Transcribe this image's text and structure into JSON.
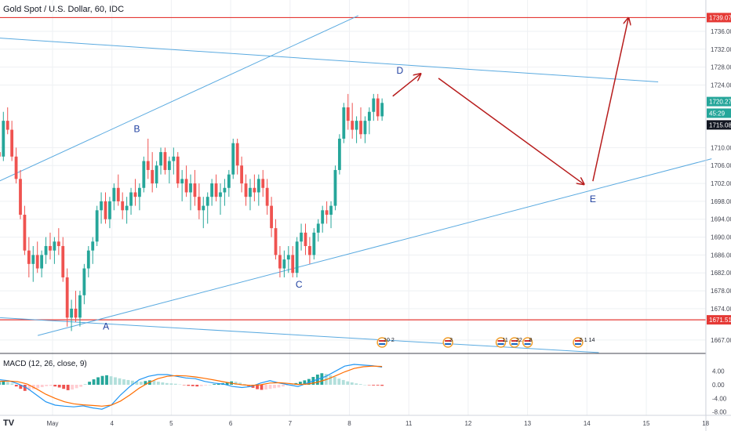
{
  "header": {
    "title": "Gold Spot / U.S. Dollar, 60, IDC"
  },
  "macd": {
    "title": "MACD (12, 26, close, 9)"
  },
  "brand": {
    "watermark": "TV"
  },
  "colors": {
    "up": "#26a69a",
    "down": "#ef5350",
    "channel": "#5aaae0",
    "level": "#e53935",
    "arrow": "#b71c1c",
    "macd_line": "#2196f3",
    "signal_line": "#ff6d00",
    "label": "#1e3fa0",
    "grid": "#eef0f3"
  },
  "chart_data": [
    {
      "type": "candlestick",
      "ylim": [
        1664,
        1743
      ],
      "y_ticks": [
        1667,
        1674,
        1678,
        1682,
        1686,
        1690,
        1694,
        1698,
        1702,
        1706,
        1710,
        1724,
        1728,
        1732,
        1736
      ],
      "x_ticks": [
        {
          "label": "May",
          "x": 0
        },
        {
          "label": "4",
          "x": 1
        },
        {
          "label": "5",
          "x": 2
        },
        {
          "label": "6",
          "x": 3
        },
        {
          "label": "7",
          "x": 4
        },
        {
          "label": "8",
          "x": 5
        },
        {
          "label": "11",
          "x": 6
        },
        {
          "label": "12",
          "x": 7
        },
        {
          "label": "13",
          "x": 8
        },
        {
          "label": "14",
          "x": 9
        },
        {
          "label": "15",
          "x": 10
        },
        {
          "label": "18",
          "x": 11
        }
      ],
      "price_tags": [
        {
          "label": "1739.07",
          "value": 1739.07,
          "color": "#e53935"
        },
        {
          "label": "1720.27",
          "value": 1720.3,
          "color": "#26a69a"
        },
        {
          "label": "45:29",
          "value": 1717.7,
          "color": "#26a69a"
        },
        {
          "label": "1715.08",
          "value": 1715.08,
          "color": "#131722"
        },
        {
          "label": "1671.51",
          "value": 1671.51,
          "color": "#e53935"
        }
      ],
      "horizontal_levels": [
        1739.07,
        1671.51
      ],
      "channel_lines": [
        {
          "x": [
            -0.9,
            5.15
          ],
          "y": [
            1702.5,
            1739.5
          ]
        },
        {
          "x": [
            -0.25,
            11.1
          ],
          "y": [
            1668,
            1707.5
          ]
        },
        {
          "x": [
            -0.9,
            10.2
          ],
          "y": [
            1734.5,
            1724.7
          ]
        },
        {
          "x": [
            -0.9,
            9.2
          ],
          "y": [
            1672,
            1664.2
          ]
        }
      ],
      "wave_labels": [
        {
          "text": "A",
          "x": 0.9,
          "y": 1669.3
        },
        {
          "text": "B",
          "x": 1.42,
          "y": 1713.5
        },
        {
          "text": "C",
          "x": 4.15,
          "y": 1678.7
        },
        {
          "text": "D",
          "x": 5.85,
          "y": 1726.5
        },
        {
          "text": "E",
          "x": 9.1,
          "y": 1697.8
        }
      ],
      "projection_arrows": [
        {
          "x": [
            5.73,
            6.2
          ],
          "y": [
            1721.5,
            1726.5
          ]
        },
        {
          "x": [
            6.5,
            8.95
          ],
          "y": [
            1725.5,
            1701.8
          ]
        },
        {
          "x": [
            9.1,
            9.7
          ],
          "y": [
            1702.5,
            1739
          ]
        }
      ],
      "events": [
        {
          "text": "10 2",
          "x": 5.55
        },
        {
          "text": "3",
          "x": 6.66
        },
        {
          "text": "11",
          "x": 7.55
        },
        {
          "text": "22",
          "x": 7.78
        },
        {
          "text": "8",
          "x": 8.0
        },
        {
          "text": "5 1 14",
          "x": 8.85
        }
      ],
      "candles": [
        [
          1709,
          1712,
          1705,
          1708
        ],
        [
          1708,
          1718,
          1707,
          1716
        ],
        [
          1716,
          1719,
          1713,
          1714
        ],
        [
          1714,
          1716,
          1707,
          1708
        ],
        [
          1708,
          1710,
          1702,
          1703
        ],
        [
          1703,
          1705,
          1694,
          1695
        ],
        [
          1695,
          1697,
          1686,
          1687
        ],
        [
          1687,
          1690,
          1681,
          1684
        ],
        [
          1684,
          1688,
          1680,
          1686
        ],
        [
          1686,
          1689,
          1682,
          1683
        ],
        [
          1683,
          1687,
          1681,
          1686
        ],
        [
          1686,
          1690,
          1684,
          1688
        ],
        [
          1688,
          1691,
          1685,
          1687
        ],
        [
          1687,
          1690,
          1684,
          1689
        ],
        [
          1689,
          1692,
          1686,
          1688
        ],
        [
          1688,
          1690,
          1680,
          1681
        ],
        [
          1681,
          1683,
          1670,
          1672
        ],
        [
          1672,
          1676,
          1669,
          1674
        ],
        [
          1674,
          1678,
          1671,
          1672
        ],
        [
          1672,
          1678,
          1670,
          1677
        ],
        [
          1677,
          1684,
          1675,
          1683
        ],
        [
          1683,
          1688,
          1681,
          1687
        ],
        [
          1687,
          1690,
          1684,
          1689
        ],
        [
          1689,
          1697,
          1688,
          1696
        ],
        [
          1696,
          1700,
          1693,
          1698
        ],
        [
          1698,
          1700,
          1693,
          1694
        ],
        [
          1694,
          1699,
          1692,
          1698
        ],
        [
          1698,
          1702,
          1696,
          1701
        ],
        [
          1701,
          1704,
          1697,
          1698
        ],
        [
          1698,
          1700,
          1694,
          1696
        ],
        [
          1696,
          1699,
          1693,
          1697
        ],
        [
          1697,
          1701,
          1695,
          1700
        ],
        [
          1700,
          1703,
          1697,
          1699
        ],
        [
          1699,
          1702,
          1696,
          1701
        ],
        [
          1701,
          1708,
          1700,
          1707
        ],
        [
          1707,
          1712,
          1703,
          1705
        ],
        [
          1705,
          1709,
          1700,
          1702
        ],
        [
          1702,
          1707,
          1701,
          1706
        ],
        [
          1706,
          1710,
          1704,
          1709
        ],
        [
          1709,
          1710,
          1704,
          1705
        ],
        [
          1705,
          1708,
          1702,
          1707
        ],
        [
          1707,
          1710,
          1704,
          1708
        ],
        [
          1708,
          1709,
          1701,
          1702
        ],
        [
          1702,
          1705,
          1698,
          1703
        ],
        [
          1703,
          1706,
          1699,
          1700
        ],
        [
          1700,
          1704,
          1696,
          1702
        ],
        [
          1702,
          1705,
          1697,
          1699
        ],
        [
          1699,
          1702,
          1694,
          1696
        ],
        [
          1696,
          1699,
          1692,
          1697
        ],
        [
          1697,
          1700,
          1693,
          1699
        ],
        [
          1699,
          1703,
          1697,
          1702
        ],
        [
          1702,
          1704,
          1698,
          1699
        ],
        [
          1699,
          1702,
          1695,
          1700
        ],
        [
          1700,
          1703,
          1697,
          1701
        ],
        [
          1701,
          1705,
          1699,
          1704
        ],
        [
          1704,
          1712,
          1703,
          1711
        ],
        [
          1711,
          1712,
          1704,
          1706
        ],
        [
          1706,
          1708,
          1700,
          1702
        ],
        [
          1702,
          1704,
          1697,
          1699
        ],
        [
          1699,
          1703,
          1696,
          1701
        ],
        [
          1701,
          1704,
          1698,
          1700
        ],
        [
          1700,
          1704,
          1697,
          1703
        ],
        [
          1703,
          1705,
          1699,
          1701
        ],
        [
          1701,
          1703,
          1695,
          1697
        ],
        [
          1697,
          1699,
          1690,
          1692
        ],
        [
          1692,
          1694,
          1685,
          1686
        ],
        [
          1686,
          1688,
          1681,
          1683
        ],
        [
          1683,
          1687,
          1681,
          1685
        ],
        [
          1685,
          1688,
          1682,
          1686
        ],
        [
          1686,
          1688,
          1681,
          1682
        ],
        [
          1682,
          1690,
          1681,
          1689
        ],
        [
          1689,
          1693,
          1687,
          1691
        ],
        [
          1691,
          1693,
          1686,
          1688
        ],
        [
          1688,
          1690,
          1684,
          1686
        ],
        [
          1686,
          1692,
          1685,
          1691
        ],
        [
          1691,
          1694,
          1689,
          1693
        ],
        [
          1693,
          1697,
          1691,
          1696
        ],
        [
          1696,
          1698,
          1693,
          1695
        ],
        [
          1695,
          1698,
          1692,
          1697
        ],
        [
          1697,
          1706,
          1696,
          1705
        ],
        [
          1705,
          1713,
          1704,
          1712
        ],
        [
          1712,
          1720,
          1711,
          1719
        ],
        [
          1719,
          1722,
          1714,
          1716
        ],
        [
          1716,
          1720,
          1712,
          1714
        ],
        [
          1714,
          1717,
          1711,
          1716
        ],
        [
          1716,
          1719,
          1712,
          1713
        ],
        [
          1713,
          1717,
          1711,
          1716
        ],
        [
          1716,
          1719,
          1713,
          1718
        ],
        [
          1718,
          1722,
          1716,
          1721
        ],
        [
          1721,
          1722,
          1716,
          1717
        ],
        [
          1717,
          1721,
          1716,
          1720
        ]
      ],
      "candle_x_range": [
        -0.9,
        5.55
      ]
    },
    {
      "type": "bar",
      "title": "MACD (12, 26, close, 9)",
      "ylim": [
        -9,
        9
      ],
      "y_ticks": [
        {
          "label": "4.00",
          "value": 4
        },
        {
          "label": "0.00",
          "value": 0
        },
        {
          "label": "-4.00",
          "value": -4
        },
        {
          "label": "-8.00",
          "value": -8
        }
      ],
      "histogram": [
        0.8,
        1.0,
        0.9,
        0.4,
        -0.5,
        -1.2,
        -1.8,
        -1.6,
        -1.3,
        -1.0,
        -0.7,
        -0.4,
        -0.3,
        -0.5,
        -0.8,
        -1.2,
        -1.6,
        -1.4,
        -1.0,
        -0.6,
        0.2,
        0.9,
        1.6,
        2.2,
        2.6,
        2.8,
        2.5,
        2.2,
        1.9,
        1.6,
        1.4,
        1.2,
        1.0,
        0.9,
        1.1,
        1.3,
        1.2,
        0.9,
        0.7,
        0.5,
        0.4,
        0.3,
        0.1,
        -0.1,
        -0.3,
        -0.4,
        -0.5,
        -0.4,
        -0.2,
        0.0,
        0.2,
        0.3,
        0.5,
        0.8,
        1.0,
        0.9,
        0.6,
        0.2,
        -0.4,
        -0.9,
        -1.3,
        -1.5,
        -1.4,
        -1.2,
        -1.0,
        -0.8,
        -0.5,
        -0.2,
        0.1,
        0.5,
        0.9,
        1.3,
        1.7,
        2.3,
        3.0,
        3.4,
        3.2,
        2.8,
        2.3,
        1.8,
        1.4,
        1.0,
        0.7,
        0.4,
        0.2,
        0.0,
        -0.1,
        -0.2,
        -0.2,
        -0.3
      ],
      "macd_line": [
        1.5,
        1.2,
        0.3,
        -1.0,
        -3.0,
        -5.0,
        -6.0,
        -6.3,
        -6.5,
        -6.2,
        -6.8,
        -7.2,
        -6.0,
        -3.0,
        -0.5,
        1.5,
        2.5,
        3.0,
        3.0,
        2.5,
        2.0,
        1.8,
        1.0,
        0.5,
        0.2,
        -0.5,
        -0.8,
        -0.5,
        0.5,
        1.2,
        0.5,
        0.0,
        -0.5,
        0.5,
        1.5,
        2.5,
        4.0,
        5.5,
        6.0,
        5.8,
        5.6,
        5.2
      ],
      "signal_line": [
        1.0,
        1.1,
        0.9,
        0.2,
        -1.2,
        -2.8,
        -4.0,
        -5.0,
        -5.6,
        -5.9,
        -6.1,
        -6.3,
        -6.0,
        -4.8,
        -3.0,
        -1.0,
        0.6,
        1.8,
        2.5,
        2.7,
        2.6,
        2.3,
        1.9,
        1.4,
        0.9,
        0.4,
        0.0,
        -0.2,
        0.0,
        0.5,
        0.6,
        0.4,
        0.1,
        0.2,
        0.7,
        1.5,
        2.6,
        3.8,
        4.8,
        5.3,
        5.5,
        5.4
      ]
    }
  ]
}
